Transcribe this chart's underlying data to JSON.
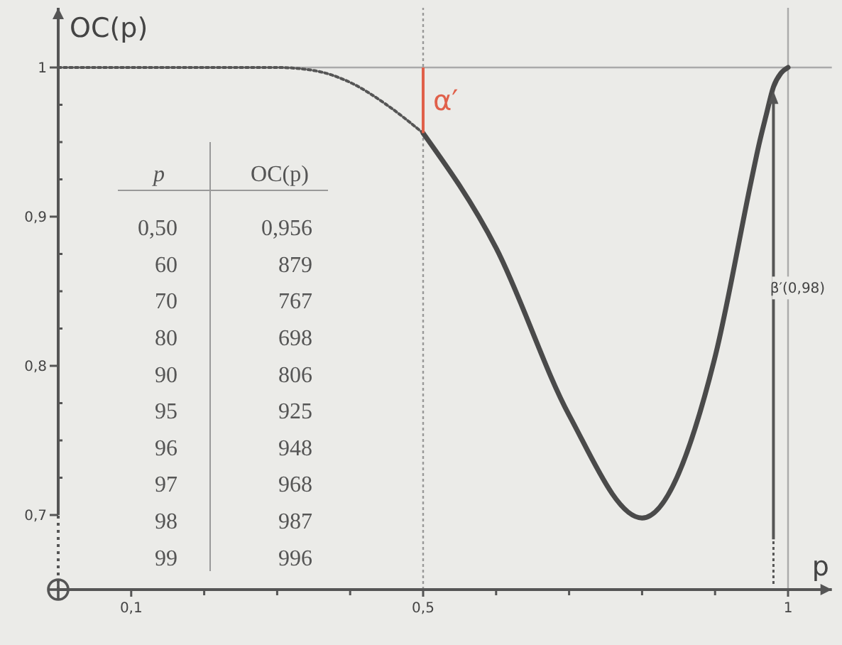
{
  "chart_data": {
    "type": "line",
    "xlabel": "p",
    "ylabel": "OC(p)",
    "xlim": [
      0,
      1.06
    ],
    "ylim": [
      0.65,
      1.04
    ],
    "xticks": [
      {
        "value": 0.1,
        "label": "0,1"
      },
      {
        "value": 0.2,
        "label": null
      },
      {
        "value": 0.3,
        "label": null
      },
      {
        "value": 0.4,
        "label": null
      },
      {
        "value": 0.5,
        "label": "0,5"
      },
      {
        "value": 0.6,
        "label": null
      },
      {
        "value": 0.7,
        "label": null
      },
      {
        "value": 0.8,
        "label": null
      },
      {
        "value": 0.9,
        "label": null
      },
      1
    ],
    "yticks": [
      {
        "value": 0.7,
        "label": "0,7"
      },
      {
        "value": 0.725,
        "label": null
      },
      {
        "value": 0.75,
        "label": null
      },
      {
        "value": 0.775,
        "label": null
      },
      {
        "value": 0.8,
        "label": "0,8"
      },
      {
        "value": 0.825,
        "label": null
      },
      {
        "value": 0.85,
        "label": null
      },
      {
        "value": 0.875,
        "label": null
      },
      {
        "value": 0.9,
        "label": "0,9"
      },
      {
        "value": 0.925,
        "label": null
      },
      {
        "value": 0.95,
        "label": null
      },
      {
        "value": 0.975,
        "label": null
      },
      1
    ],
    "grid": false,
    "marker": "none",
    "series": [
      {
        "color": "#555555",
        "line_style": "dotted",
        "x": [
          0,
          0.3,
          0.35,
          0.4,
          0.45,
          0.5
        ],
        "values": [
          1,
          1,
          0.998,
          0.99,
          0.975,
          0.956
        ]
      },
      {
        "color": "#4a4a4a",
        "line_style": "solid",
        "x": [
          0.5,
          0.6,
          0.7,
          0.8,
          0.9,
          0.95,
          0.96,
          0.97,
          0.98,
          0.99,
          1
        ],
        "values": [
          0.956,
          0.879,
          0.767,
          0.698,
          0.806,
          0.925,
          0.948,
          0.968,
          0.987,
          0.996,
          1
        ]
      }
    ],
    "ref_lines": [
      {
        "axis": "y",
        "value": 1,
        "color": "#aaaaaa",
        "line_style": "solid"
      },
      {
        "axis": "x",
        "value": 0.5,
        "color": "#999999",
        "line_style": "dotted"
      },
      {
        "axis": "x",
        "value": 1,
        "color": "#aaaaaa",
        "line_style": "solid"
      }
    ],
    "annotations": [
      {
        "text": "α′",
        "x": 0.5,
        "y": 0.956
      },
      "β′(0,98)",
      "p",
      "OC(p)",
      "0,50",
      "0,956",
      "60",
      "879",
      "70",
      "767",
      "80",
      "698",
      "90",
      "806",
      "95",
      "925",
      "96",
      "948",
      "97",
      "968",
      "98",
      "987",
      "99",
      "996"
    ]
  }
}
